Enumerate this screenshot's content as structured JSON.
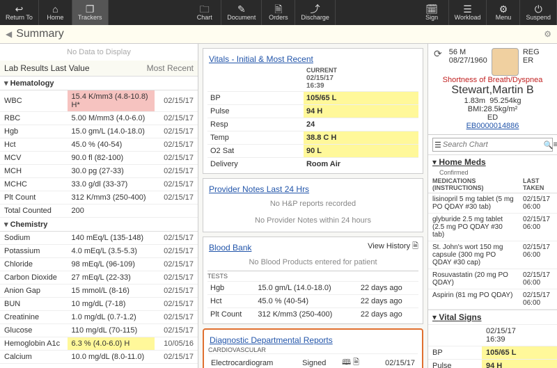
{
  "toolbar": {
    "items": [
      {
        "label": "Return To",
        "icon": "↩"
      },
      {
        "label": "Home",
        "icon": "⌂"
      },
      {
        "label": "Trackers",
        "icon": "❐",
        "active": true
      },
      {
        "label": "Chart",
        "icon": "🗀"
      },
      {
        "label": "Document",
        "icon": "✎"
      },
      {
        "label": "Orders",
        "icon": "🗎"
      },
      {
        "label": "Discharge",
        "icon": "⤴"
      },
      {
        "label": "Sign",
        "icon": "🗓"
      },
      {
        "label": "Workload",
        "icon": "☰"
      },
      {
        "label": "Menu",
        "icon": "⚙"
      },
      {
        "label": "Suspend",
        "icon": "⏻"
      }
    ]
  },
  "page": {
    "title": "Summary"
  },
  "labs": {
    "title": "Lab Results Last Value",
    "recent_label": "Most Recent",
    "no_data": "No Data to Display",
    "groups": [
      {
        "name": "Hematology",
        "rows": [
          {
            "n": "WBC",
            "v": "15.4 K/mm3 (4.8-10.8) H*",
            "d": "02/15/17",
            "flag": "red"
          },
          {
            "n": "RBC",
            "v": "5.00 M/mm3 (4.0-6.0)",
            "d": "02/15/17"
          },
          {
            "n": "Hgb",
            "v": "15.0 gm/L (14.0-18.0)",
            "d": "02/15/17"
          },
          {
            "n": "Hct",
            "v": "45.0 % (40-54)",
            "d": "02/15/17"
          },
          {
            "n": "MCV",
            "v": "90.0 fl (82-100)",
            "d": "02/15/17"
          },
          {
            "n": "MCH",
            "v": "30.0 pg (27-33)",
            "d": "02/15/17"
          },
          {
            "n": "MCHC",
            "v": "33.0 g/dl (33-37)",
            "d": "02/15/17"
          },
          {
            "n": "Plt Count",
            "v": "312 K/mm3 (250-400)",
            "d": "02/15/17"
          },
          {
            "n": "Total Counted",
            "v": "200",
            "d": ""
          }
        ]
      },
      {
        "name": "Chemistry",
        "rows": [
          {
            "n": "Sodium",
            "v": "140 mEq/L (135-148)",
            "d": "02/15/17"
          },
          {
            "n": "Potassium",
            "v": "4.0 mEq/L (3.5-5.3)",
            "d": "02/15/17"
          },
          {
            "n": "Chloride",
            "v": "98 mEq/L (96-109)",
            "d": "02/15/17"
          },
          {
            "n": "Carbon Dioxide",
            "v": "27 mEq/L (22-33)",
            "d": "02/15/17"
          },
          {
            "n": "Anion Gap",
            "v": "15 mmol/L (8-16)",
            "d": "02/15/17"
          },
          {
            "n": "BUN",
            "v": "10 mg/dL (7-18)",
            "d": "02/15/17"
          },
          {
            "n": "Creatinine",
            "v": "1.0 mg/dL (0.7-1.2)",
            "d": "02/15/17"
          },
          {
            "n": "Glucose",
            "v": "110 mg/dL (70-115)",
            "d": "02/15/17"
          },
          {
            "n": "Hemoglobin A1c",
            "v": "6.3 % (4.0-6.0) H",
            "d": "10/05/16",
            "flag": "yel"
          },
          {
            "n": "Calcium",
            "v": "10.0 mg/dL (8.0-11.0)",
            "d": "02/15/17"
          }
        ]
      }
    ]
  },
  "vitals": {
    "title": "Vitals - Initial & Most Recent",
    "col_label": "CURRENT",
    "ts1": "02/15/17",
    "ts2": "16:39",
    "rows": [
      {
        "n": "BP",
        "v": "105/65 L",
        "flag": "yel"
      },
      {
        "n": "Pulse",
        "v": "94 H",
        "flag": "yel"
      },
      {
        "n": "Resp",
        "v": "24"
      },
      {
        "n": "Temp",
        "v": "38.8 C H",
        "flag": "yel"
      },
      {
        "n": "O2 Sat",
        "v": "90 L",
        "flag": "yel"
      },
      {
        "n": "Delivery",
        "v": "Room Air"
      }
    ]
  },
  "provider_notes": {
    "title": "Provider Notes Last 24 Hrs",
    "msg1": "No H&P reports recorded",
    "msg2": "No Provider Notes within 24 hours"
  },
  "blood_bank": {
    "title": "Blood Bank",
    "history": "View History",
    "msg": "No Blood Products entered for patient",
    "tests_label": "TESTS",
    "rows": [
      {
        "n": "Hgb",
        "v": "15.0 gm/L (14.0-18.0)",
        "d": "22 days ago"
      },
      {
        "n": "Hct",
        "v": "45.0 % (40-54)",
        "d": "22 days ago"
      },
      {
        "n": "Plt Count",
        "v": "312 K/mm3 (250-400)",
        "d": "22 days ago"
      }
    ]
  },
  "diag": {
    "title": "Diagnostic Departmental Reports",
    "cat": "CARDIOVASCULAR",
    "name": "Electrocardiogram",
    "status": "Signed",
    "date": "02/15/17"
  },
  "patient": {
    "age_sex": "56  M",
    "dob": "08/27/1960",
    "status": "REG ER",
    "cc": "Shortness of Breath/Dyspnea",
    "name": "Stewart,Martin B",
    "ht": "1.83m",
    "wt": "95.254kg",
    "bmi": "BMI:28.5kg/m²",
    "loc": "ED",
    "mrn": "EB0000014886",
    "search_ph": "Search Chart"
  },
  "home_meds": {
    "title": "Home Meds",
    "sub": "Confirmed",
    "col1": "MEDICATIONS (INSTRUCTIONS)",
    "col2": "LAST TAKEN",
    "rows": [
      {
        "m": "lisinopril 5 mg tablet (5 mg PO QDAY #30 tab)",
        "t": "02/15/17 06:00"
      },
      {
        "m": "glyburide 2.5 mg tablet (2.5 mg PO QDAY #30 tab)",
        "t": "02/15/17 06:00"
      },
      {
        "m": "St. John's wort 150 mg capsule (300 mg PO QDAY #30 cap)",
        "t": "02/15/17 06:00"
      },
      {
        "m": "Rosuvastatin (20 mg PO QDAY)",
        "t": "02/15/17 06:00"
      },
      {
        "m": "Aspirin (81 mg PO QDAY)",
        "t": "02/15/17 06:00"
      }
    ]
  },
  "r_vitals": {
    "title": "Vital Signs",
    "ts1": "02/15/17",
    "ts2": "16:39",
    "rows": [
      {
        "n": "BP",
        "v": "105/65 L",
        "flag": "yel"
      },
      {
        "n": "Pulse",
        "v": "94 H",
        "flag": "yel"
      }
    ]
  }
}
